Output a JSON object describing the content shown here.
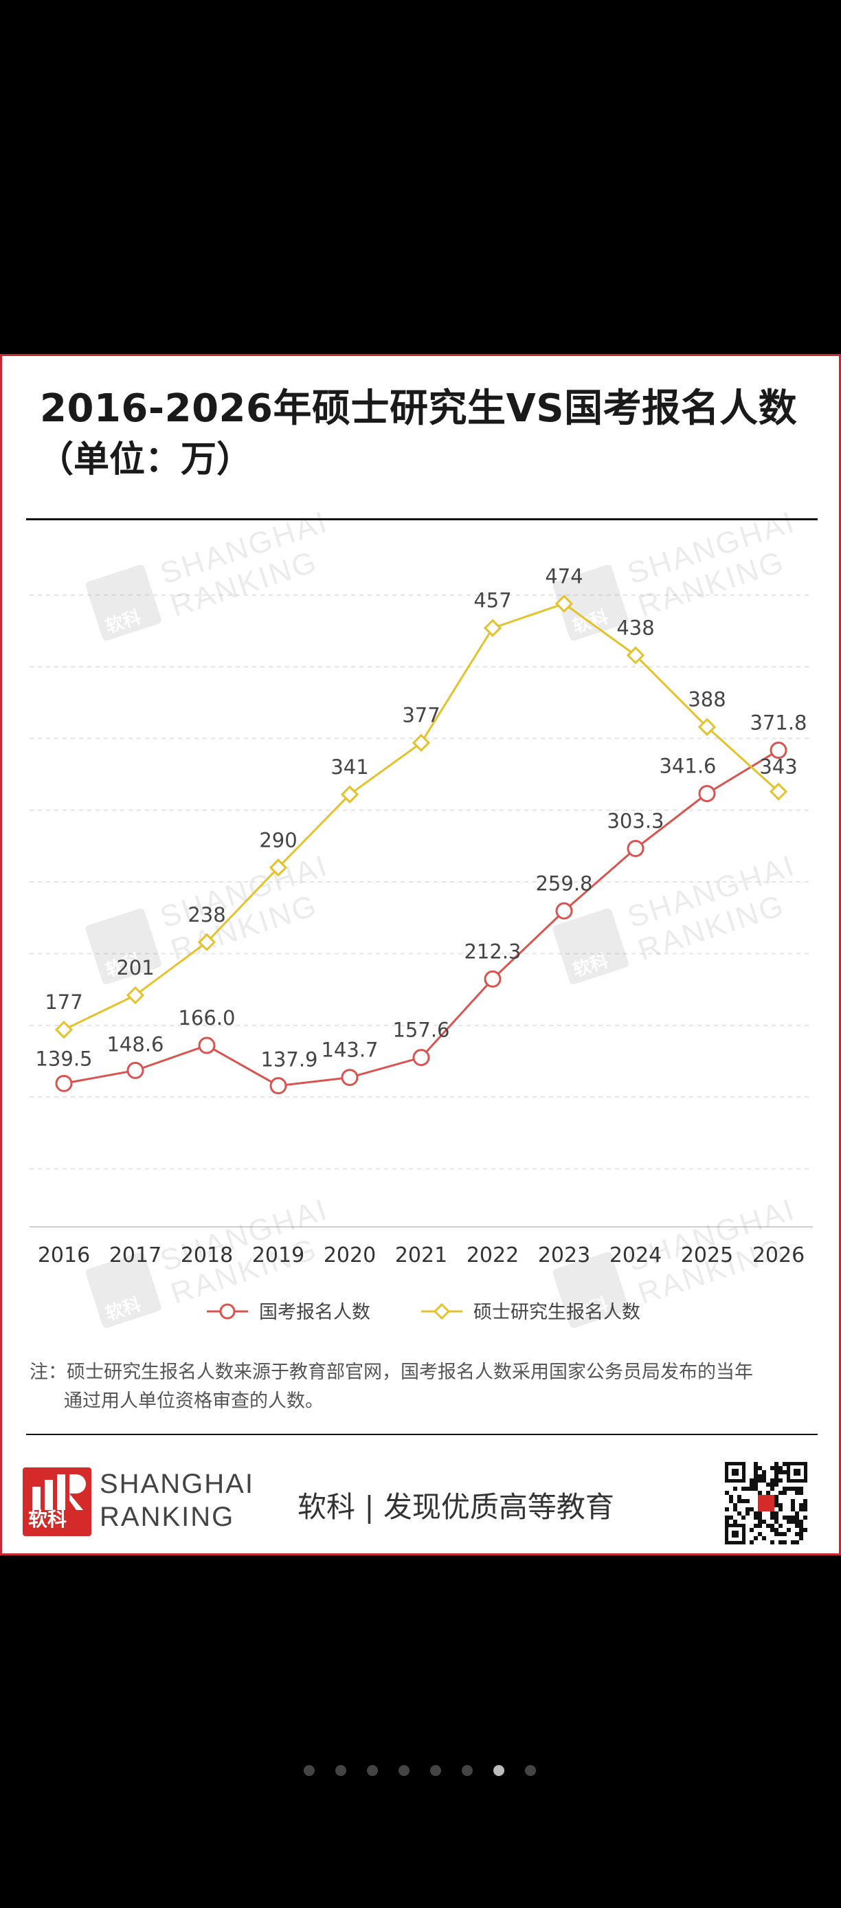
{
  "card": {
    "title": "2016-2026年硕士研究生VS国考报名人数",
    "subtitle": "（单位：万）",
    "note_line1": "注：硕士研究生报名人数来源于教育部官网，国考报名人数采用国家公务员局发布的当年",
    "note_line2": "通过用人单位资格审查的人数。",
    "brand_line1": "SHANGHAI",
    "brand_line2": "RANKING",
    "logo_text": "软科",
    "slogan": "软科 | 发现优质高等教育",
    "watermark_line1": "SHANGHAI",
    "watermark_line2": "RANKING",
    "watermark_logo": "软科"
  },
  "chart_data": {
    "type": "line",
    "title": "2016-2026年硕士研究生VS国考报名人数",
    "x": [
      "2016",
      "2017",
      "2018",
      "2019",
      "2020",
      "2021",
      "2022",
      "2023",
      "2024",
      "2025",
      "2026"
    ],
    "series": [
      {
        "name": "国考报名人数",
        "color": "#d9534f",
        "marker": "circle",
        "values": [
          139.5,
          148.6,
          166.0,
          137.9,
          143.7,
          157.6,
          212.3,
          259.8,
          303.3,
          341.6,
          371.8
        ],
        "labels": [
          "139.5",
          "148.6",
          "166.0",
          "137.9",
          "143.7",
          "157.6",
          "212.3",
          "259.8",
          "303.3",
          "341.6",
          "371.8"
        ]
      },
      {
        "name": "硕士研究生报名人数",
        "color": "#e3c22b",
        "marker": "diamond",
        "values": [
          177,
          201,
          238,
          290,
          341,
          377,
          457,
          474,
          438,
          388,
          343
        ],
        "labels": [
          "177",
          "201",
          "238",
          "290",
          "341",
          "377",
          "457",
          "474",
          "438",
          "388",
          "343"
        ]
      }
    ],
    "ylim": [
      40,
      500
    ],
    "grid": true,
    "legend": "bottom"
  },
  "pagination": {
    "count": 8,
    "active_index": 6
  }
}
